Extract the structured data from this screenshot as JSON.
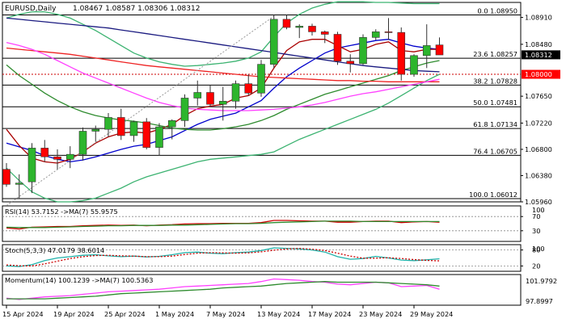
{
  "chart_data": {
    "type": "candlestick",
    "title": "EURUSD,Daily",
    "ohlc_header": "1.08467 1.08587 1.08306 1.08312",
    "price_axis": {
      "ylim": [
        1.0596,
        1.0915
      ],
      "ticks": [
        "1.08910",
        "1.08480",
        "1.08312",
        "1.08000",
        "1.07650",
        "1.07220",
        "1.06800",
        "1.06380",
        "1.05960"
      ],
      "current_price_label": "1.08312",
      "marker_price_label": "1.08000"
    },
    "x_axis": {
      "tick_labels": [
        "15 Apr 2024",
        "19 Apr 2024",
        "25 Apr 2024",
        "1 May 2024",
        "7 May 2024",
        "13 May 2024",
        "17 May 2024",
        "23 May 2024",
        "29 May 2024"
      ],
      "tick_index": [
        0,
        4,
        8,
        12,
        16,
        20,
        24,
        28,
        32
      ]
    },
    "candles": [
      {
        "o": 1.0648,
        "h": 1.0658,
        "l": 1.062,
        "c": 1.0624
      },
      {
        "o": 1.0624,
        "h": 1.064,
        "l": 1.0601,
        "c": 1.0626
      },
      {
        "o": 1.0628,
        "h": 1.069,
        "l": 1.061,
        "c": 1.0682
      },
      {
        "o": 1.0682,
        "h": 1.0695,
        "l": 1.066,
        "c": 1.0668
      },
      {
        "o": 1.0668,
        "h": 1.068,
        "l": 1.0648,
        "c": 1.0664
      },
      {
        "o": 1.0664,
        "h": 1.0685,
        "l": 1.065,
        "c": 1.0672
      },
      {
        "o": 1.0672,
        "h": 1.0715,
        "l": 1.0662,
        "c": 1.0709
      },
      {
        "o": 1.0709,
        "h": 1.0718,
        "l": 1.0692,
        "c": 1.0712
      },
      {
        "o": 1.0712,
        "h": 1.0738,
        "l": 1.07,
        "c": 1.0731
      },
      {
        "o": 1.0731,
        "h": 1.0745,
        "l": 1.0695,
        "c": 1.0702
      },
      {
        "o": 1.0702,
        "h": 1.0726,
        "l": 1.0692,
        "c": 1.0724
      },
      {
        "o": 1.0724,
        "h": 1.073,
        "l": 1.068,
        "c": 1.0683
      },
      {
        "o": 1.0683,
        "h": 1.0722,
        "l": 1.067,
        "c": 1.0716
      },
      {
        "o": 1.0716,
        "h": 1.0728,
        "l": 1.0696,
        "c": 1.0726
      },
      {
        "o": 1.0726,
        "h": 1.0768,
        "l": 1.0716,
        "c": 1.0762
      },
      {
        "o": 1.0762,
        "h": 1.079,
        "l": 1.075,
        "c": 1.0771
      },
      {
        "o": 1.0771,
        "h": 1.0782,
        "l": 1.0748,
        "c": 1.0752
      },
      {
        "o": 1.0752,
        "h": 1.078,
        "l": 1.0726,
        "c": 1.0757
      },
      {
        "o": 1.0757,
        "h": 1.079,
        "l": 1.0745,
        "c": 1.0785
      },
      {
        "o": 1.0785,
        "h": 1.08,
        "l": 1.0766,
        "c": 1.077
      },
      {
        "o": 1.077,
        "h": 1.0823,
        "l": 1.0764,
        "c": 1.0816
      },
      {
        "o": 1.0816,
        "h": 1.0895,
        "l": 1.081,
        "c": 1.0888
      },
      {
        "o": 1.0888,
        "h": 1.0895,
        "l": 1.0872,
        "c": 1.0875
      },
      {
        "o": 1.0875,
        "h": 1.088,
        "l": 1.0858,
        "c": 1.0877
      },
      {
        "o": 1.0877,
        "h": 1.0881,
        "l": 1.0862,
        "c": 1.0868
      },
      {
        "o": 1.0868,
        "h": 1.087,
        "l": 1.085,
        "c": 1.0864
      },
      {
        "o": 1.0864,
        "h": 1.0868,
        "l": 1.0815,
        "c": 1.0821
      },
      {
        "o": 1.0821,
        "h": 1.0832,
        "l": 1.0803,
        "c": 1.0817
      },
      {
        "o": 1.0817,
        "h": 1.0864,
        "l": 1.0815,
        "c": 1.0859
      },
      {
        "o": 1.0859,
        "h": 1.0872,
        "l": 1.0855,
        "c": 1.0868
      },
      {
        "o": 1.0868,
        "h": 1.089,
        "l": 1.0855,
        "c": 1.0867
      },
      {
        "o": 1.0867,
        "h": 1.0875,
        "l": 1.079,
        "c": 1.08
      },
      {
        "o": 1.08,
        "h": 1.0832,
        "l": 1.0796,
        "c": 1.083
      },
      {
        "o": 1.083,
        "h": 1.088,
        "l": 1.081,
        "c": 1.0846
      },
      {
        "o": 1.0847,
        "h": 1.0859,
        "l": 1.0831,
        "c": 1.0831
      }
    ],
    "fibonacci": [
      {
        "label": "0.0 1.08950",
        "price": 1.0895
      },
      {
        "label": "23.6 1.08257",
        "price": 1.08257
      },
      {
        "label": "38.2 1.07828",
        "price": 1.07828
      },
      {
        "label": "50.0 1.07481",
        "price": 1.07481
      },
      {
        "label": "61.8 1.07134",
        "price": 1.07134
      },
      {
        "label": "76.4 1.06705",
        "price": 1.06705
      },
      {
        "label": "100.0 1.06012",
        "price": 1.06012
      }
    ],
    "moving_averages": [
      {
        "color": "#0000cc",
        "values": [
          1.069,
          1.0684,
          1.0678,
          1.067,
          1.0664,
          1.066,
          1.0663,
          1.0668,
          1.0674,
          1.068,
          1.0685,
          1.0688,
          1.0694,
          1.07,
          1.071,
          1.072,
          1.0728,
          1.0733,
          1.0738,
          1.0748,
          1.0758,
          1.0778,
          1.0796,
          1.081,
          1.0822,
          1.0834,
          1.0842,
          1.0846,
          1.085,
          1.0854,
          1.0856,
          1.085,
          1.0845,
          1.0842,
          1.084
        ]
      },
      {
        "color": "#aa0000",
        "values": [
          1.0712,
          1.0686,
          1.0666,
          1.066,
          1.0658,
          1.0664,
          1.0676,
          1.069,
          1.07,
          1.0706,
          1.0708,
          1.0706,
          1.0712,
          1.072,
          1.0734,
          1.0745,
          1.0749,
          1.0752,
          1.0762,
          1.0766,
          1.0778,
          1.081,
          1.0838,
          1.0852,
          1.0856,
          1.0856,
          1.0846,
          1.0836,
          1.084,
          1.0848,
          1.0852,
          1.0838,
          1.0836,
          1.084,
          1.084
        ]
      },
      {
        "color": "#2e8b2e",
        "values": [
          1.0815,
          1.0798,
          1.0784,
          1.077,
          1.0758,
          1.0748,
          1.074,
          1.0734,
          1.073,
          1.0727,
          1.0725,
          1.0722,
          1.0718,
          1.0714,
          1.0712,
          1.0711,
          1.0711,
          1.0713,
          1.0716,
          1.072,
          1.0726,
          1.0734,
          1.0744,
          1.0752,
          1.076,
          1.0768,
          1.0774,
          1.078,
          1.0786,
          1.0792,
          1.0798,
          1.0806,
          1.0812,
          1.0818,
          1.0822
        ]
      },
      {
        "color": "#1a1a80",
        "values": [
          1.089,
          1.0888,
          1.0886,
          1.0884,
          1.0882,
          1.088,
          1.0878,
          1.0876,
          1.0874,
          1.0871,
          1.0868,
          1.0865,
          1.0862,
          1.0859,
          1.0856,
          1.0853,
          1.085,
          1.0847,
          1.0844,
          1.0841,
          1.0838,
          1.0835,
          1.0832,
          1.0829,
          1.0826,
          1.0823,
          1.082,
          1.0817,
          1.0814,
          1.0812,
          1.081,
          1.0808,
          1.0806,
          1.0805,
          1.0804
        ]
      },
      {
        "color": "#ee2222",
        "values": [
          1.0842,
          1.084,
          1.0838,
          1.0836,
          1.0834,
          1.0832,
          1.0829,
          1.0826,
          1.0823,
          1.082,
          1.0817,
          1.0814,
          1.0812,
          1.081,
          1.0808,
          1.0806,
          1.0804,
          1.0802,
          1.08,
          1.0798,
          1.0796,
          1.0795,
          1.0794,
          1.0793,
          1.0792,
          1.0791,
          1.079,
          1.079,
          1.0789,
          1.0789,
          1.0788,
          1.0788,
          1.0788,
          1.0788,
          1.0788
        ]
      },
      {
        "color": "#ff40ff",
        "values": [
          1.0851,
          1.0846,
          1.084,
          1.0832,
          1.0822,
          1.0812,
          1.0802,
          1.0794,
          1.0786,
          1.0778,
          1.077,
          1.0762,
          1.0755,
          1.075,
          1.0746,
          1.0744,
          1.0743,
          1.0742,
          1.0742,
          1.0742,
          1.0743,
          1.0744,
          1.0746,
          1.0748,
          1.0751,
          1.0755,
          1.076,
          1.0765,
          1.0769,
          1.0772,
          1.0776,
          1.078,
          1.0784,
          1.0788,
          1.0792
        ]
      }
    ],
    "bollinger": [
      {
        "color": "#3cb371",
        "values": [
          1.089,
          1.0896,
          1.09,
          1.09,
          1.0896,
          1.089,
          1.088,
          1.087,
          1.0858,
          1.0846,
          1.0834,
          1.0826,
          1.082,
          1.0816,
          1.0813,
          1.0814,
          1.0816,
          1.0818,
          1.0821,
          1.0826,
          1.0836,
          1.086,
          1.0882,
          1.0896,
          1.0906,
          1.0912,
          1.0916,
          1.0916,
          1.0916,
          1.0915,
          1.0915,
          1.0914,
          1.0913,
          1.0913,
          1.0913
        ]
      },
      {
        "color": "#3cb371",
        "values": [
          1.065,
          1.063,
          1.0612,
          1.0602,
          1.0596,
          1.0596,
          1.0598,
          1.0602,
          1.061,
          1.0618,
          1.0628,
          1.0636,
          1.0642,
          1.0648,
          1.0654,
          1.066,
          1.0664,
          1.0666,
          1.0668,
          1.067,
          1.0672,
          1.0676,
          1.0686,
          1.0696,
          1.0704,
          1.0712,
          1.072,
          1.0728,
          1.0736,
          1.0744,
          1.0754,
          1.0766,
          1.0778,
          1.079,
          1.08
        ]
      }
    ],
    "trendline": {
      "color": "#999999",
      "from": {
        "i": 0,
        "price": 1.059
      },
      "to": {
        "i": 21,
        "price": 1.0893
      }
    },
    "indicators": [
      {
        "name": "RSI(14) 53.7152 ->MA(7) 55.9575",
        "scale_labels": [
          "70",
          "30"
        ],
        "scale_tops": [
          "100"
        ],
        "ylim": [
          0,
          100
        ],
        "levels": [
          70,
          30
        ],
        "series": [
          {
            "color": "#cc0000",
            "values": [
              38,
              35,
              40,
              41,
              42,
              42,
              44,
              45,
              46,
              45,
              46,
              44,
              46,
              47,
              49,
              50,
              50,
              51,
              51,
              51,
              53,
              59,
              59,
              58,
              57,
              57,
              54,
              54,
              56,
              57,
              57,
              53,
              55,
              56,
              54
            ]
          },
          {
            "color": "#2e8b2e",
            "values": [
              40,
              39,
              39,
              39,
              40,
              41,
              42,
              43,
              44,
              44,
              45,
              45,
              45,
              46,
              46,
              47,
              48,
              49,
              50,
              50,
              51,
              53,
              54,
              55,
              56,
              57,
              57,
              57,
              56,
              56,
              56,
              56,
              56,
              56,
              56
            ]
          }
        ]
      },
      {
        "name": "Stoch(5,3,3) 47.0179 38.6014",
        "scale_labels": [
          "80",
          "20"
        ],
        "scale_tops": [
          "100"
        ],
        "ylim": [
          0,
          100
        ],
        "levels": [
          80,
          20
        ],
        "series": [
          {
            "color": "#20b2aa",
            "values": [
              20,
              18,
              25,
              40,
              50,
              55,
              60,
              62,
              58,
              55,
              57,
              54,
              56,
              62,
              70,
              72,
              68,
              66,
              70,
              72,
              78,
              88,
              86,
              84,
              80,
              72,
              55,
              45,
              48,
              56,
              50,
              42,
              40,
              43,
              47
            ]
          },
          {
            "color": "#cc0000",
            "dashed": true,
            "values": [
              24,
              21,
              20,
              28,
              38,
              48,
              55,
              59,
              60,
              58,
              57,
              55,
              55,
              57,
              63,
              68,
              70,
              69,
              68,
              69,
              73,
              79,
              84,
              86,
              83,
              78,
              68,
              57,
              49,
              49,
              51,
              48,
              44,
              41,
              39
            ]
          }
        ]
      },
      {
        "name": "Momentum(14) 100.1239 ->MA(7) 100.5363",
        "scale_labels": [
          "101.9792",
          "97.8997"
        ],
        "ylim": [
          97.6,
          102.4
        ],
        "series": [
          {
            "color": "#ff40ff",
            "values": [
              98.7,
              98.5,
              98.7,
              98.9,
              99.0,
              99.1,
              99.3,
              99.5,
              99.7,
              99.8,
              99.9,
              100.0,
              100.1,
              100.3,
              100.5,
              100.6,
              100.7,
              100.8,
              100.9,
              101.0,
              101.3,
              101.7,
              101.6,
              101.5,
              101.3,
              101.2,
              100.9,
              100.8,
              101.0,
              101.2,
              101.1,
              100.5,
              100.6,
              100.7,
              100.1
            ]
          },
          {
            "color": "#2e8b2e",
            "values": [
              98.6,
              98.6,
              98.6,
              98.6,
              98.7,
              98.8,
              98.9,
              99.0,
              99.2,
              99.4,
              99.5,
              99.6,
              99.7,
              99.8,
              99.9,
              100.0,
              100.1,
              100.3,
              100.4,
              100.5,
              100.6,
              100.8,
              101.0,
              101.1,
              101.2,
              101.3,
              101.2,
              101.2,
              101.2,
              101.2,
              101.1,
              101.0,
              100.9,
              100.8,
              100.6
            ]
          }
        ]
      }
    ],
    "colors": {
      "bull": "#2db52d",
      "bear": "#ff0000",
      "marker_line": "#cc0000",
      "current_label_bg": "#000000",
      "marker_label_bg": "#ff0000"
    }
  }
}
